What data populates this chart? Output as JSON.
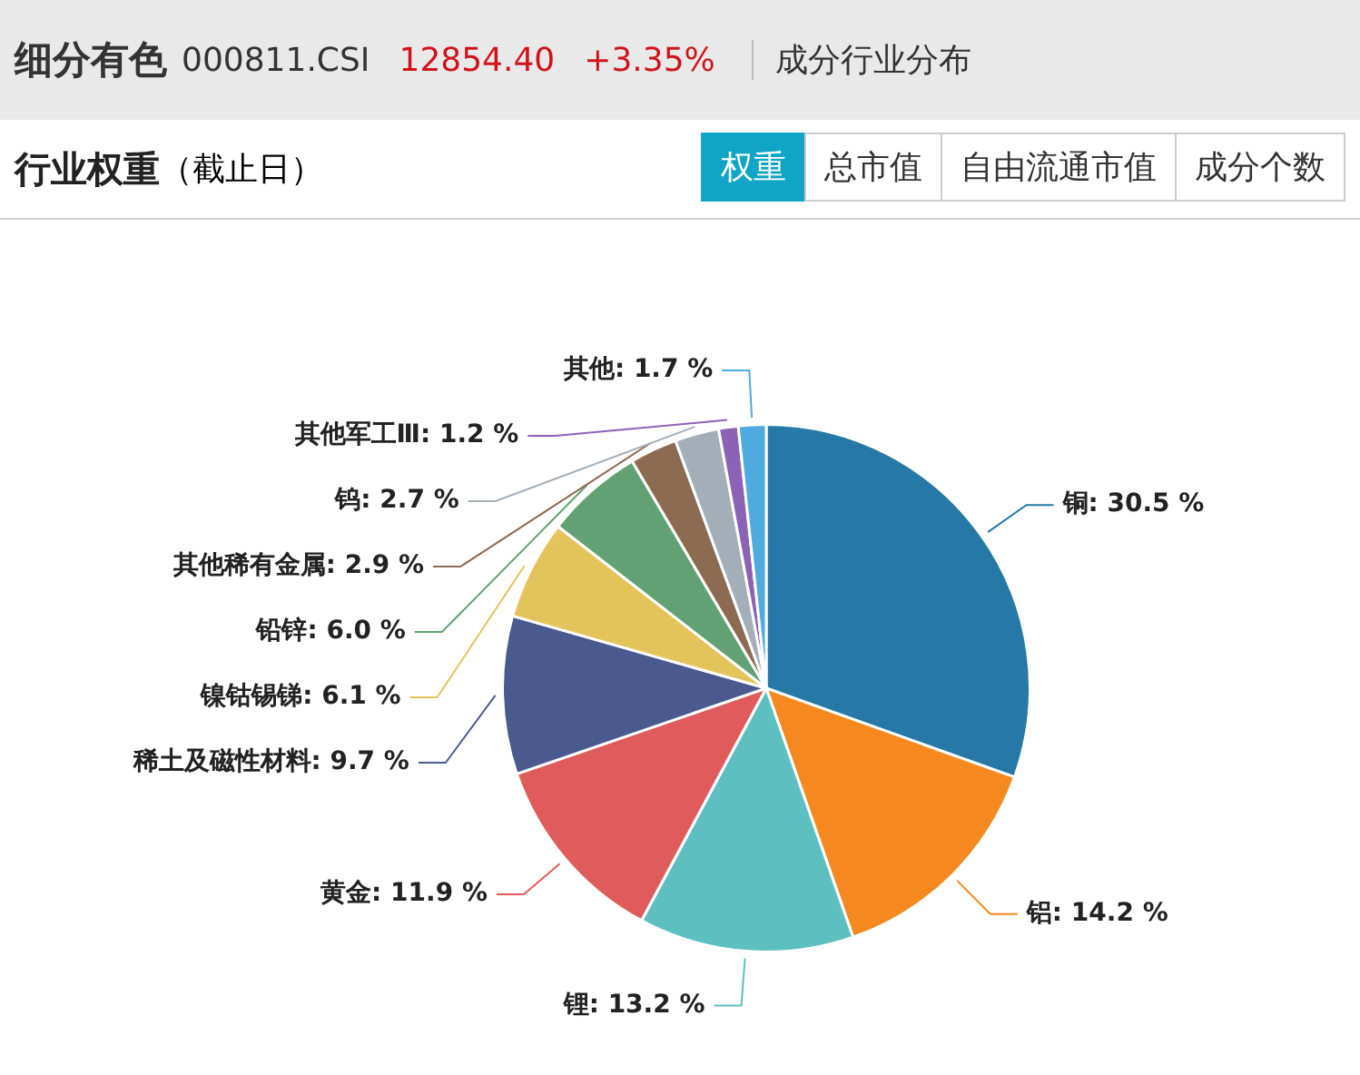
{
  "chart_data": {
    "type": "pie",
    "title": "细分有色",
    "subtitle": "行业权重（截止日）",
    "annotations": [
      "000811.CSI",
      "12854.40",
      "+3.35%",
      "成分行业分布",
      "权重",
      "总市值",
      "自由流通市值",
      "成分个数"
    ],
    "categories": [
      "铜",
      "铝",
      "锂",
      "黄金",
      "稀土及磁性材料",
      "镍钴锡锑",
      "铅锌",
      "其他稀有金属",
      "钨",
      "其他军工Ⅲ",
      "其他"
    ],
    "values": [
      30.5,
      14.2,
      13.2,
      11.9,
      9.7,
      6.1,
      6.0,
      2.9,
      2.7,
      1.2,
      1.7
    ],
    "value_labels": [
      "30.5 %",
      "14.2 %",
      "13.2 %",
      "11.9 %",
      "9.7 %",
      "6.1 %",
      "6.0 %",
      "2.9 %",
      "2.7 %",
      "1.2 %",
      "1.7 %"
    ],
    "colors": [
      "#2679a6",
      "#f5891f",
      "#5ebfc1",
      "#e05c5c",
      "#4b5a8e",
      "#e3c45a",
      "#62a173",
      "#8d6a52",
      "#a4aeb8",
      "#8b62b6",
      "#4eaadf"
    ]
  }
}
